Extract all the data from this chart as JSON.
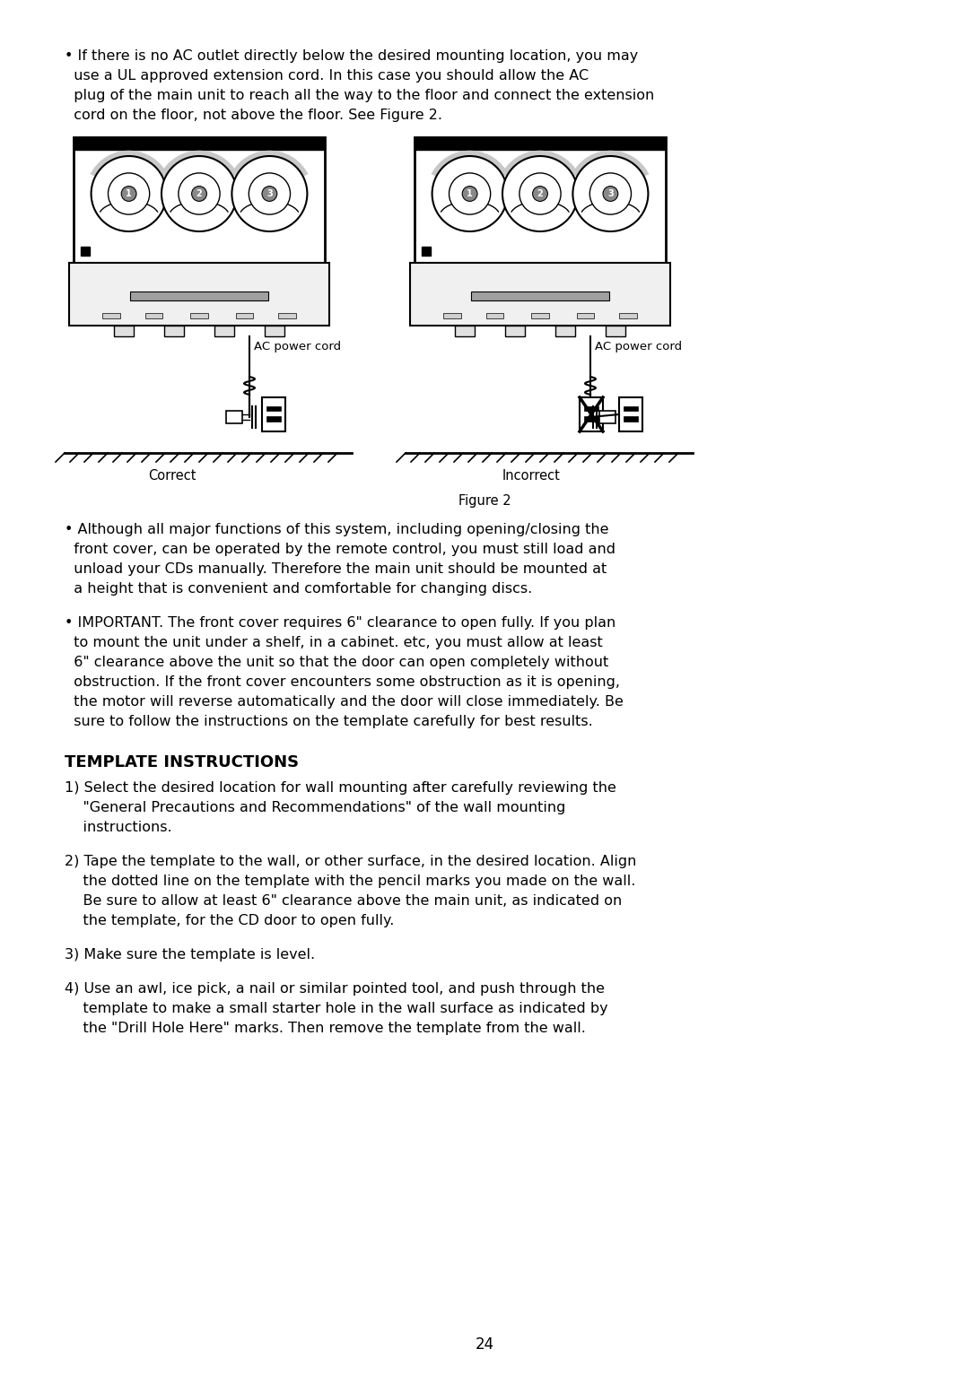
{
  "bg_color": "#ffffff",
  "text_color": "#000000",
  "page_number": "24",
  "font_size_body": 11.5,
  "font_size_heading": 13,
  "font_size_fig": 9.5,
  "heading": "TEMPLATE INSTRUCTIONS",
  "bullet1_lines": [
    "• If there is no AC outlet directly below the desired mounting location, you may",
    "  use a UL approved extension cord. In this case you should allow the AC",
    "  plug of the main unit to reach all the way to the floor and connect the extension",
    "  cord on the floor, not above the floor. See Figure 2."
  ],
  "bullet2_lines": [
    "• Although all major functions of this system, including opening/closing the",
    "  front cover, can be operated by the remote control, you must still load and",
    "  unload your CDs manually. Therefore the main unit should be mounted at",
    "  a height that is convenient and comfortable for changing discs."
  ],
  "bullet3_lines": [
    "• IMPORTANT. The front cover requires 6\" clearance to open fully. If you plan",
    "  to mount the unit under a shelf, in a cabinet. etc, you must allow at least",
    "  6\" clearance above the unit so that the door can open completely without",
    "  obstruction. If the front cover encounters some obstruction as it is opening,",
    "  the motor will reverse automatically and the door will close immediately. Be",
    "  sure to follow the instructions on the template carefully for best results."
  ],
  "item1_lines": [
    "1) Select the desired location for wall mounting after carefully reviewing the",
    "    \"General Precautions and Recommendations\" of the wall mounting",
    "    instructions."
  ],
  "item2_lines": [
    "2) Tape the template to the wall, or other surface, in the desired location. Align",
    "    the dotted line on the template with the pencil marks you made on the wall.",
    "    Be sure to allow at least 6\" clearance above the main unit, as indicated on",
    "    the template, for the CD door to open fully."
  ],
  "item3_lines": [
    "3) Make sure the template is level."
  ],
  "item4_lines": [
    "4) Use an awl, ice pick, a nail or similar pointed tool, and push through the",
    "    template to make a small starter hole in the wall surface as indicated by",
    "    the \"Drill Hole Here\" marks. Then remove the template from the wall."
  ]
}
